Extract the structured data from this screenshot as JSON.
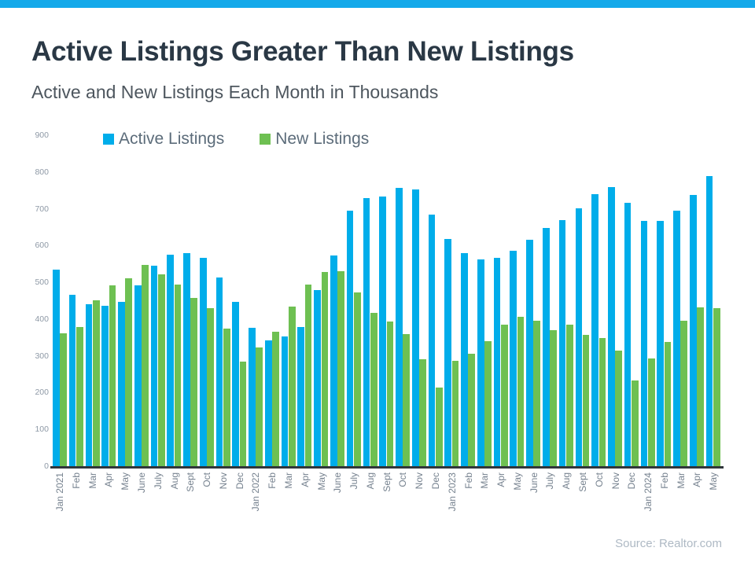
{
  "chart_data": {
    "type": "bar",
    "title": "Active Listings Greater Than New Listings",
    "subtitle": "Active and New Listings Each Month in Thousands",
    "unit": "thousands",
    "categories": [
      "Jan 2021",
      "Feb",
      "Mar",
      "Apr",
      "May",
      "June",
      "July",
      "Aug",
      "Sept",
      "Oct",
      "Nov",
      "Dec",
      "Jan 2022",
      "Feb",
      "Mar",
      "Apr",
      "May",
      "June",
      "July",
      "Aug",
      "Sept",
      "Oct",
      "Nov",
      "Dec",
      "Jan 2023",
      "Feb",
      "Mar",
      "Apr",
      "May",
      "June",
      "July",
      "Aug",
      "Sept",
      "Oct",
      "Nov",
      "Dec",
      "Jan 2024",
      "Feb",
      "Mar",
      "Apr",
      "May"
    ],
    "series": [
      {
        "name": "Active Listings",
        "color": "#00ADEA",
        "values": [
          534,
          466,
          441,
          437,
          447,
          491,
          546,
          575,
          580,
          566,
          513,
          446,
          377,
          343,
          352,
          378,
          478,
          573,
          694,
          729,
          733,
          756,
          753,
          684,
          617,
          580,
          562,
          566,
          585,
          615,
          647,
          670,
          702,
          740,
          758,
          716,
          667,
          667,
          695,
          737,
          790
        ]
      },
      {
        "name": "New Listings",
        "color": "#6EC052",
        "values": [
          361,
          378,
          452,
          492,
          512,
          548,
          522,
          494,
          458,
          430,
          375,
          285,
          323,
          366,
          434,
          494,
          528,
          531,
          473,
          417,
          393,
          359,
          291,
          214,
          286,
          306,
          341,
          384,
          407,
          395,
          371,
          385,
          357,
          348,
          314,
          234,
          293,
          338,
          396,
          432,
          430
        ]
      }
    ],
    "ylim": [
      0,
      900
    ],
    "yticks": [
      0,
      100,
      200,
      300,
      400,
      500,
      600,
      700,
      800,
      900
    ],
    "grid": false,
    "legend_position": "top-left-inside",
    "source": "Source: Realtor.com"
  },
  "colors": {
    "accent_bar": "#14A9EA",
    "title_text": "#2A3845",
    "subtitle_text": "#4D565E",
    "legend_text": "#5C6C7A",
    "axis_line": "#30363B",
    "ytick_text": "#8E99A6",
    "xlabel_text": "#76828F",
    "source_text": "#AEB9C4"
  }
}
